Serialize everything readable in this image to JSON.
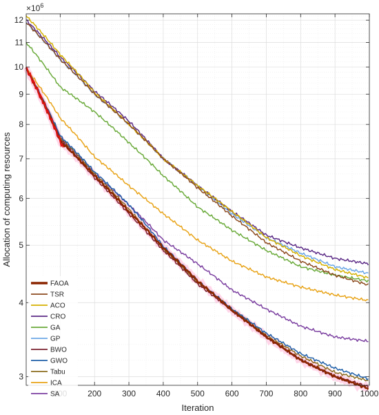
{
  "chart_data": {
    "type": "line",
    "title": "",
    "xlabel": "Iteration",
    "ylabel": "Allocation of computing resources",
    "exponent_label": "×10",
    "exponent_power": "6",
    "xlim": [
      1,
      1000
    ],
    "ylim": [
      2.9,
      12.3
    ],
    "yscale": "log",
    "grid": true,
    "legend_position": "bottom-left",
    "x_ticks": [
      "100",
      "200",
      "300",
      "400",
      "500",
      "600",
      "700",
      "800",
      "900",
      "1000"
    ],
    "y_ticks": [
      "3",
      "4",
      "5",
      "6",
      "7",
      "8",
      "9",
      "10",
      "11",
      "12"
    ],
    "x": [
      1,
      100,
      200,
      300,
      400,
      500,
      600,
      700,
      800,
      900,
      1000
    ],
    "series": [
      {
        "name": "FAOA",
        "color": "#8b2500",
        "values": [
          9.95,
          7.5,
          6.55,
          5.7,
          4.95,
          4.35,
          3.88,
          3.5,
          3.2,
          3.0,
          2.86
        ]
      },
      {
        "name": "TSR",
        "color": "#8c4a1e",
        "values": [
          11.9,
          10.3,
          9.0,
          8.0,
          7.0,
          6.25,
          5.6,
          5.05,
          4.7,
          4.45,
          4.28
        ]
      },
      {
        "name": "ACO",
        "color": "#d4b000",
        "values": [
          12.2,
          10.5,
          9.05,
          8.0,
          7.0,
          6.3,
          5.7,
          5.15,
          4.8,
          4.55,
          4.4
        ]
      },
      {
        "name": "CRO",
        "color": "#5b2a86",
        "values": [
          12.0,
          10.4,
          9.1,
          8.1,
          7.0,
          6.3,
          5.7,
          5.2,
          4.95,
          4.75,
          4.65
        ]
      },
      {
        "name": "GA",
        "color": "#6aaa3a",
        "values": [
          11.0,
          9.25,
          8.4,
          7.45,
          6.55,
          5.8,
          5.3,
          4.9,
          4.6,
          4.45,
          4.35
        ]
      },
      {
        "name": "GP",
        "color": "#6ba7e6",
        "values": [
          11.9,
          10.3,
          9.0,
          8.0,
          7.0,
          6.3,
          5.65,
          5.15,
          4.85,
          4.6,
          4.48
        ]
      },
      {
        "name": "BWO",
        "color": "#7a1f2b",
        "values": [
          9.95,
          7.55,
          6.5,
          5.65,
          4.9,
          4.3,
          3.88,
          3.5,
          3.2,
          3.0,
          2.88
        ]
      },
      {
        "name": "GWO",
        "color": "#1f5fa8",
        "values": [
          9.95,
          7.65,
          6.65,
          5.85,
          4.98,
          4.35,
          3.9,
          3.55,
          3.28,
          3.1,
          2.97
        ]
      },
      {
        "name": "Tabu",
        "color": "#8c6d1f",
        "values": [
          9.95,
          7.6,
          6.6,
          5.75,
          4.92,
          4.32,
          3.9,
          3.52,
          3.25,
          3.05,
          2.95
        ]
      },
      {
        "name": "ICA",
        "color": "#e8a317",
        "values": [
          9.95,
          8.2,
          7.05,
          6.3,
          5.65,
          5.1,
          4.7,
          4.42,
          4.25,
          4.12,
          4.03
        ]
      },
      {
        "name": "SA",
        "color": "#7b3fa0",
        "values": [
          9.95,
          7.6,
          6.6,
          5.85,
          5.1,
          4.65,
          4.2,
          3.9,
          3.65,
          3.5,
          3.44
        ]
      }
    ],
    "highlight": {
      "color": "#e01010"
    }
  }
}
